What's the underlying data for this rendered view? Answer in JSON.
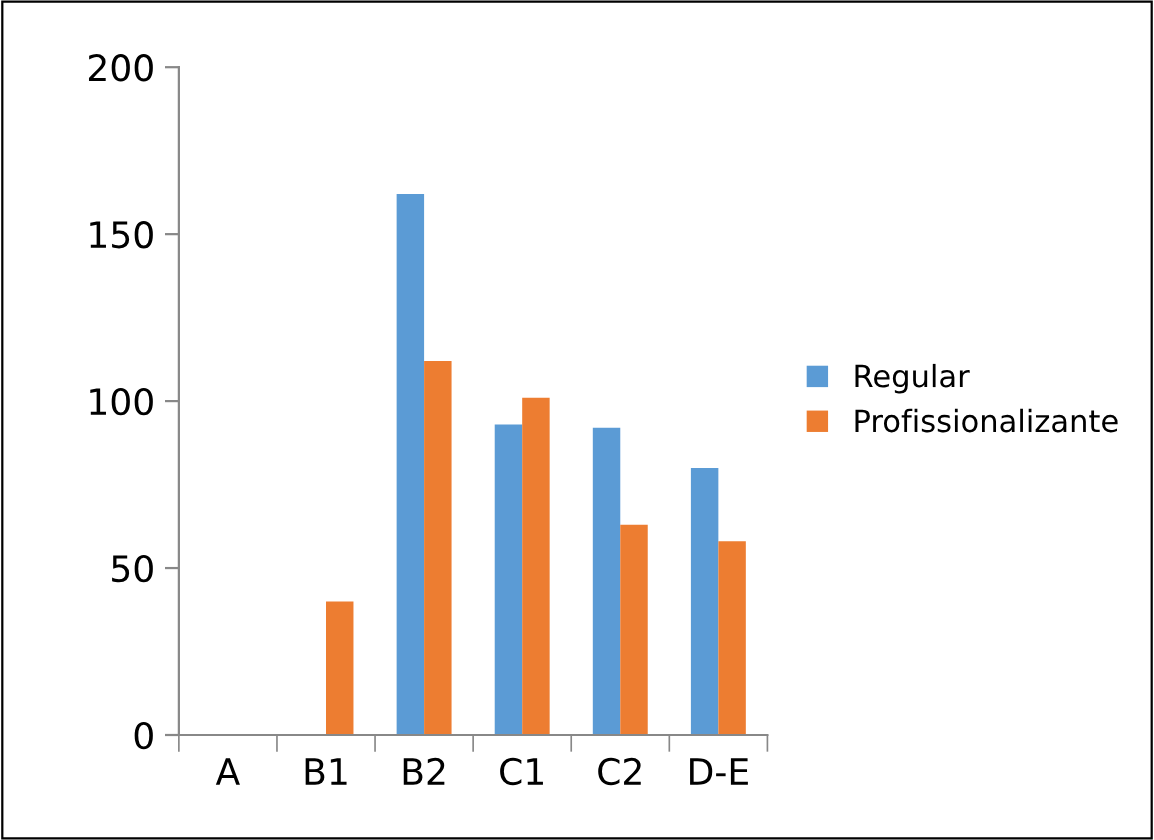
{
  "chart_data": {
    "type": "bar",
    "categories": [
      "A",
      "B1",
      "B2",
      "C1",
      "C2",
      "D-E"
    ],
    "series": [
      {
        "name": "Regular",
        "color": "#5b9bd5",
        "values": [
          0,
          0,
          162,
          93,
          92,
          80
        ]
      },
      {
        "name": "Profissionalizante",
        "color": "#ed7d31",
        "values": [
          0,
          40,
          112,
          101,
          63,
          58
        ]
      }
    ],
    "ylim": [
      0,
      200
    ],
    "yticks": [
      0,
      50,
      100,
      150,
      200
    ],
    "grid": false,
    "legend": "right"
  }
}
